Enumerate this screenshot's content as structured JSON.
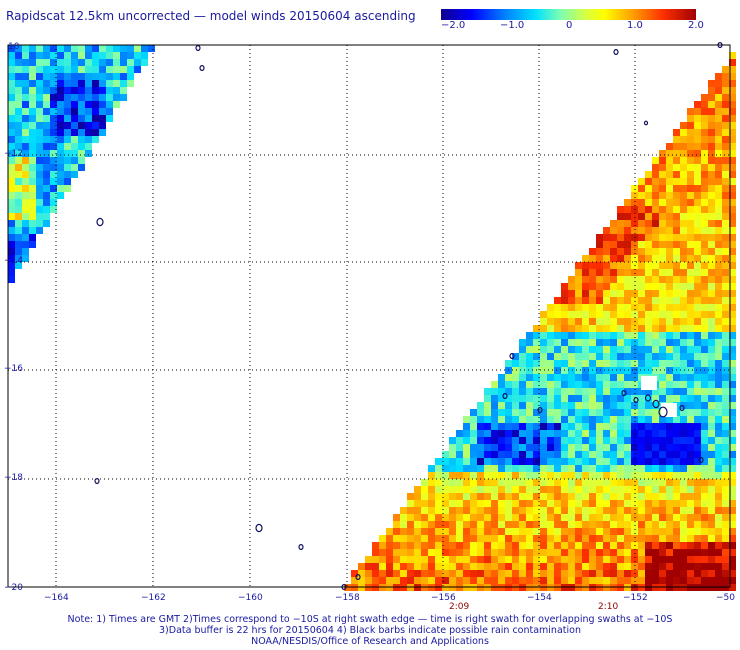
{
  "title": "Rapidscat 12.5km uncorrected — model winds 20150604 ascending",
  "colorbar": {
    "labels": [
      "−2.0",
      "−1.0",
      "0",
      "1.0",
      "2.0"
    ],
    "values": [
      -2.0,
      -1.0,
      0,
      1.0,
      2.0
    ],
    "colors": [
      "#10008e",
      "#0000ff",
      "#0080ff",
      "#00e0ff",
      "#7fffb0",
      "#d8ff40",
      "#ffff00",
      "#ffa000",
      "#ff3000",
      "#a00000"
    ]
  },
  "axes": {
    "x_ticks": [
      "−164",
      "−162",
      "−160",
      "−158",
      "−156",
      "−154",
      "−152",
      "−50"
    ],
    "y_ticks": [
      "10",
      "−12",
      "−14",
      "−16",
      "−18",
      "−20"
    ]
  },
  "time_labels": [
    "2:09",
    "2:10"
  ],
  "notes": [
    "Note: 1) Times are GMT 2)Times correspond to −10S at right swath edge — time is right swath for overlapping swaths at −10S",
    "3)Data buffer is 22 hrs for 20150604 4) Black barbs indicate possible rain contamination",
    "NOAA/NESDIS/Office of Research and Applications"
  ]
}
